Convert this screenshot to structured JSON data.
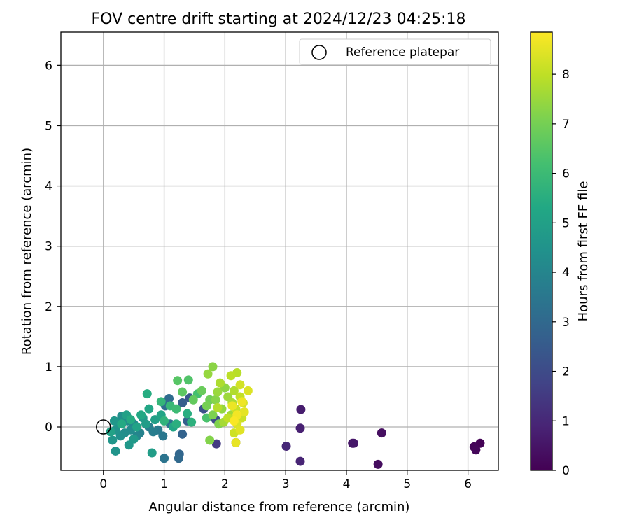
{
  "chart_data": {
    "type": "scatter",
    "title": "FOV centre drift starting at 2024/12/23 04:25:18",
    "xlabel": "Angular distance from reference (arcmin)",
    "ylabel": "Rotation from reference (arcmin)",
    "xlim": [
      -0.7,
      6.5
    ],
    "ylim": [
      -0.72,
      6.55
    ],
    "xticks": [
      0,
      1,
      2,
      3,
      4,
      5,
      6
    ],
    "yticks": [
      0,
      1,
      2,
      3,
      4,
      5,
      6
    ],
    "grid": true,
    "legend": {
      "position": "top-right",
      "entries": [
        "Reference platepar"
      ]
    },
    "reference_point": {
      "name": "Reference platepar",
      "x": 0,
      "y": 0
    },
    "colorbar": {
      "label": "Hours from first FF file",
      "min": 0,
      "max": 8.85,
      "ticks": [
        0,
        1,
        2,
        3,
        4,
        5,
        6,
        7,
        8
      ],
      "colormap": "viridis"
    },
    "series": [
      {
        "name": "Hours from first FF file",
        "points": [
          {
            "x": 6.2,
            "y": -0.27,
            "c": 0.05
          },
          {
            "x": 6.1,
            "y": -0.33,
            "c": 0.1
          },
          {
            "x": 6.13,
            "y": -0.38,
            "c": 0.15
          },
          {
            "x": 4.52,
            "y": -0.62,
            "c": 0.3
          },
          {
            "x": 4.58,
            "y": -0.1,
            "c": 0.35
          },
          {
            "x": 4.1,
            "y": -0.27,
            "c": 0.5
          },
          {
            "x": 4.12,
            "y": -0.27,
            "c": 0.55
          },
          {
            "x": 3.25,
            "y": 0.29,
            "c": 0.7
          },
          {
            "x": 3.24,
            "y": -0.02,
            "c": 0.8
          },
          {
            "x": 3.24,
            "y": -0.57,
            "c": 0.9
          },
          {
            "x": 3.01,
            "y": -0.32,
            "c": 1.0
          },
          {
            "x": 1.86,
            "y": -0.28,
            "c": 1.5
          },
          {
            "x": 2.18,
            "y": -0.26,
            "c": 1.7
          },
          {
            "x": 1.85,
            "y": 0.12,
            "c": 2.0
          },
          {
            "x": 1.65,
            "y": 0.3,
            "c": 2.2
          },
          {
            "x": 1.42,
            "y": 0.48,
            "c": 2.4
          },
          {
            "x": 1.3,
            "y": 0.4,
            "c": 2.6
          },
          {
            "x": 1.38,
            "y": 0.1,
            "c": 2.7
          },
          {
            "x": 1.3,
            "y": -0.12,
            "c": 2.8
          },
          {
            "x": 1.25,
            "y": -0.45,
            "c": 2.9
          },
          {
            "x": 1.24,
            "y": -0.52,
            "c": 3.0
          },
          {
            "x": 1.08,
            "y": 0.47,
            "c": 3.1
          },
          {
            "x": 1.02,
            "y": 0.35,
            "c": 3.2
          },
          {
            "x": 1.1,
            "y": 0.05,
            "c": 3.3
          },
          {
            "x": 1.0,
            "y": -0.52,
            "c": 3.4
          },
          {
            "x": 0.98,
            "y": -0.15,
            "c": 3.5
          },
          {
            "x": 0.9,
            "y": -0.05,
            "c": 3.6
          },
          {
            "x": 0.82,
            "y": -0.08,
            "c": 3.7
          },
          {
            "x": 0.75,
            "y": 0.0,
            "c": 3.8
          },
          {
            "x": 0.6,
            "y": -0.1,
            "c": 3.9
          },
          {
            "x": 0.55,
            "y": -0.15,
            "c": 4.0
          },
          {
            "x": 0.5,
            "y": 0.05,
            "c": 4.1
          },
          {
            "x": 0.45,
            "y": -0.05,
            "c": 4.2
          },
          {
            "x": 0.4,
            "y": 0.1,
            "c": 4.25
          },
          {
            "x": 0.35,
            "y": -0.1,
            "c": 4.3
          },
          {
            "x": 0.3,
            "y": 0.18,
            "c": 4.35
          },
          {
            "x": 0.28,
            "y": -0.15,
            "c": 4.4
          },
          {
            "x": 0.25,
            "y": 0.05,
            "c": 4.45
          },
          {
            "x": 0.2,
            "y": -0.05,
            "c": 4.5
          },
          {
            "x": 0.2,
            "y": -0.4,
            "c": 4.55
          },
          {
            "x": 0.15,
            "y": -0.22,
            "c": 4.6
          },
          {
            "x": 0.18,
            "y": 0.1,
            "c": 4.65
          },
          {
            "x": 0.42,
            "y": -0.3,
            "c": 4.7
          },
          {
            "x": 0.5,
            "y": -0.2,
            "c": 4.75
          },
          {
            "x": 0.65,
            "y": 0.15,
            "c": 4.8
          },
          {
            "x": 0.7,
            "y": 0.05,
            "c": 4.85
          },
          {
            "x": 0.8,
            "y": -0.43,
            "c": 4.9
          },
          {
            "x": 0.85,
            "y": 0.12,
            "c": 4.95
          },
          {
            "x": 0.38,
            "y": 0.2,
            "c": 5.0
          },
          {
            "x": 0.12,
            "y": -0.08,
            "c": 5.05
          },
          {
            "x": 0.55,
            "y": 0.0,
            "c": 5.1
          },
          {
            "x": 0.95,
            "y": 0.2,
            "c": 5.15
          },
          {
            "x": 1.15,
            "y": 0.0,
            "c": 5.2
          },
          {
            "x": 0.75,
            "y": 0.3,
            "c": 5.25
          },
          {
            "x": 0.62,
            "y": 0.2,
            "c": 5.3
          },
          {
            "x": 0.3,
            "y": 0.05,
            "c": 5.35
          },
          {
            "x": 0.45,
            "y": 0.12,
            "c": 5.4
          },
          {
            "x": 0.72,
            "y": 0.55,
            "c": 5.45
          },
          {
            "x": 1.38,
            "y": 0.22,
            "c": 5.5
          },
          {
            "x": 1.2,
            "y": 0.05,
            "c": 5.55
          },
          {
            "x": 1.45,
            "y": 0.08,
            "c": 5.6
          },
          {
            "x": 1.0,
            "y": 0.1,
            "c": 5.7
          },
          {
            "x": 0.95,
            "y": 0.42,
            "c": 5.8
          },
          {
            "x": 1.1,
            "y": 0.35,
            "c": 5.9
          },
          {
            "x": 1.2,
            "y": 0.3,
            "c": 6.0
          },
          {
            "x": 1.55,
            "y": 0.55,
            "c": 6.2
          },
          {
            "x": 1.7,
            "y": 0.15,
            "c": 6.3
          },
          {
            "x": 1.4,
            "y": 0.78,
            "c": 6.4
          },
          {
            "x": 1.22,
            "y": 0.77,
            "c": 6.5
          },
          {
            "x": 1.3,
            "y": 0.58,
            "c": 6.6
          },
          {
            "x": 1.48,
            "y": 0.45,
            "c": 6.7
          },
          {
            "x": 1.62,
            "y": 0.6,
            "c": 6.8
          },
          {
            "x": 1.75,
            "y": 0.45,
            "c": 6.9
          },
          {
            "x": 1.7,
            "y": 0.35,
            "c": 7.0
          },
          {
            "x": 1.8,
            "y": 0.2,
            "c": 7.1
          },
          {
            "x": 1.9,
            "y": 0.05,
            "c": 7.15
          },
          {
            "x": 1.75,
            "y": -0.22,
            "c": 7.2
          },
          {
            "x": 1.85,
            "y": 0.45,
            "c": 7.25
          },
          {
            "x": 1.8,
            "y": 1.0,
            "c": 7.3
          },
          {
            "x": 2.0,
            "y": 0.65,
            "c": 7.35
          },
          {
            "x": 1.95,
            "y": 0.3,
            "c": 7.4
          },
          {
            "x": 1.72,
            "y": 0.88,
            "c": 7.45
          },
          {
            "x": 1.88,
            "y": 0.58,
            "c": 7.5
          },
          {
            "x": 2.05,
            "y": 0.5,
            "c": 7.55
          },
          {
            "x": 2.1,
            "y": 0.2,
            "c": 7.6
          },
          {
            "x": 1.98,
            "y": 0.08,
            "c": 7.65
          },
          {
            "x": 2.12,
            "y": 0.4,
            "c": 7.7
          },
          {
            "x": 1.92,
            "y": 0.73,
            "c": 7.75
          },
          {
            "x": 2.15,
            "y": 0.6,
            "c": 7.8
          },
          {
            "x": 1.88,
            "y": 0.32,
            "c": 7.85
          },
          {
            "x": 2.2,
            "y": 0.9,
            "c": 7.9
          },
          {
            "x": 2.1,
            "y": 0.85,
            "c": 7.95
          },
          {
            "x": 2.05,
            "y": 0.15,
            "c": 8.0
          },
          {
            "x": 2.25,
            "y": 0.5,
            "c": 8.05
          },
          {
            "x": 2.18,
            "y": 0.3,
            "c": 8.1
          },
          {
            "x": 2.28,
            "y": 0.15,
            "c": 8.15
          },
          {
            "x": 2.15,
            "y": -0.1,
            "c": 8.2
          },
          {
            "x": 2.25,
            "y": 0.7,
            "c": 8.25
          },
          {
            "x": 2.3,
            "y": 0.4,
            "c": 8.3
          },
          {
            "x": 2.2,
            "y": 0.05,
            "c": 8.35
          },
          {
            "x": 2.38,
            "y": 0.6,
            "c": 8.4
          },
          {
            "x": 2.25,
            "y": -0.05,
            "c": 8.45
          },
          {
            "x": 2.32,
            "y": 0.25,
            "c": 8.5
          },
          {
            "x": 2.18,
            "y": -0.26,
            "c": 8.55
          },
          {
            "x": 2.12,
            "y": 0.35,
            "c": 8.6
          },
          {
            "x": 2.28,
            "y": 0.42,
            "c": 8.65
          },
          {
            "x": 2.2,
            "y": 0.2,
            "c": 8.7
          },
          {
            "x": 2.15,
            "y": 0.1,
            "c": 8.8
          }
        ]
      }
    ]
  }
}
